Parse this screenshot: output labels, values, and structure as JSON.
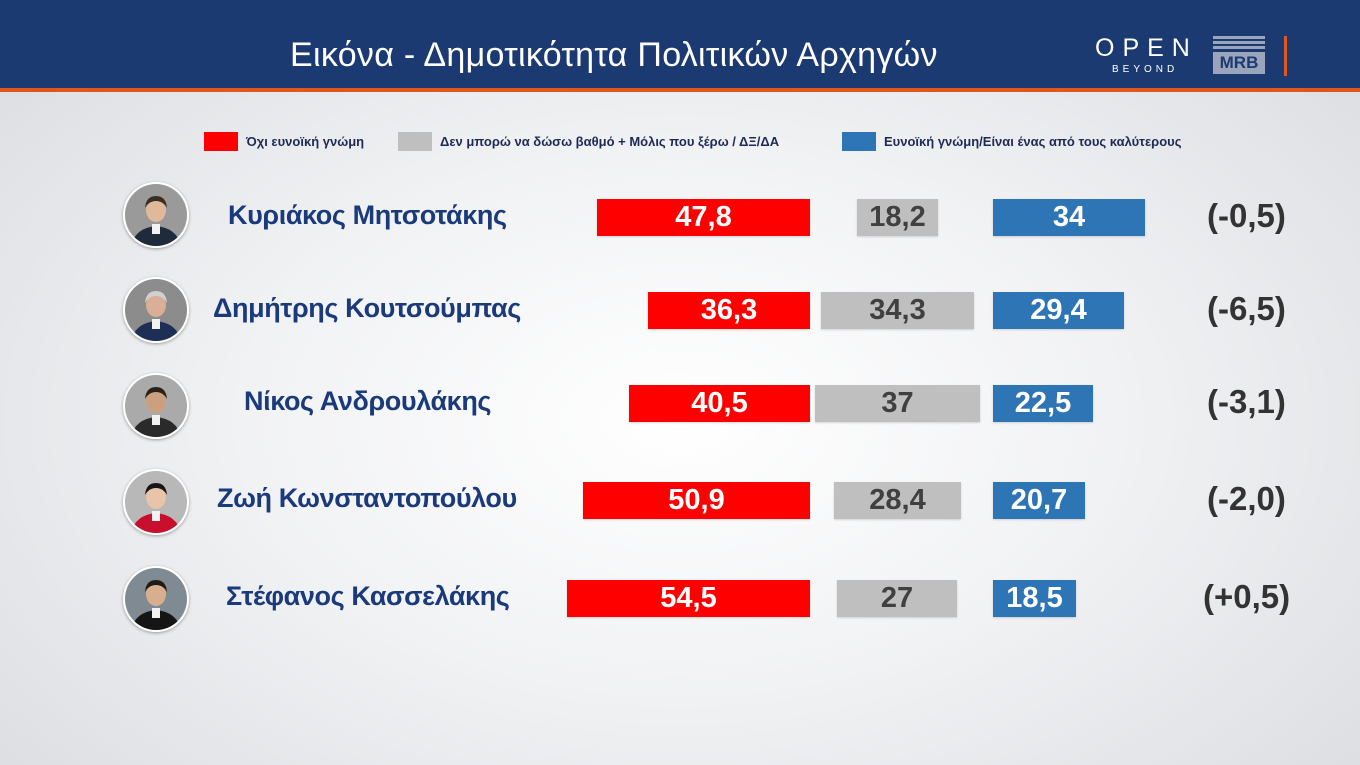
{
  "header": {
    "title": "Εικόνα - Δημοτικότητα Πολιτικών Αρχηγών",
    "logo_open": "OPEN",
    "logo_beyond": "BEYOND",
    "logo_mrb": "MRB"
  },
  "colors": {
    "header_bg": "#1c3a72",
    "accent": "#e0561f",
    "negative": "#ff0000",
    "neutral": "#bfbfbf",
    "positive": "#2e75b6"
  },
  "chart_data": {
    "type": "bar",
    "title": "Εικόνα - Δημοτικότητα Πολιτικών Αρχηγών",
    "legend_placement": "top",
    "grid": false,
    "categories": [
      "Κυριάκος Μητσοτάκης",
      "Δημήτρης Κουτσούμπας",
      "Νίκος Ανδρουλάκης",
      "Ζωή Κωνσταντοπούλου",
      "Στέφανος Κασσελάκης"
    ],
    "series": [
      {
        "name": "Όχι ευνοϊκή γνώμη",
        "color": "#ff0000",
        "values": [
          47.8,
          36.3,
          40.5,
          50.9,
          54.5
        ],
        "labels": [
          "47,8",
          "36,3",
          "40,5",
          "50,9",
          "54,5"
        ]
      },
      {
        "name": "Δεν μπορώ να δώσω βαθμό + Μόλις που ξέρω / ΔΞ/ΔΑ",
        "color": "#bfbfbf",
        "values": [
          18.2,
          34.3,
          37,
          28.4,
          27
        ],
        "labels": [
          "18,2",
          "34,3",
          "37",
          "28,4",
          "27"
        ]
      },
      {
        "name": "Ευνοϊκή γνώμη/Είναι ένας από τους καλύτερους",
        "color": "#2e75b6",
        "values": [
          34,
          29.4,
          22.5,
          20.7,
          18.5
        ],
        "labels": [
          "34",
          "29,4",
          "22,5",
          "20,7",
          "18,5"
        ]
      }
    ],
    "changes": [
      "(-0,5)",
      "(-6,5)",
      "(-3,1)",
      "(-2,0)",
      "(+0,5)"
    ]
  }
}
